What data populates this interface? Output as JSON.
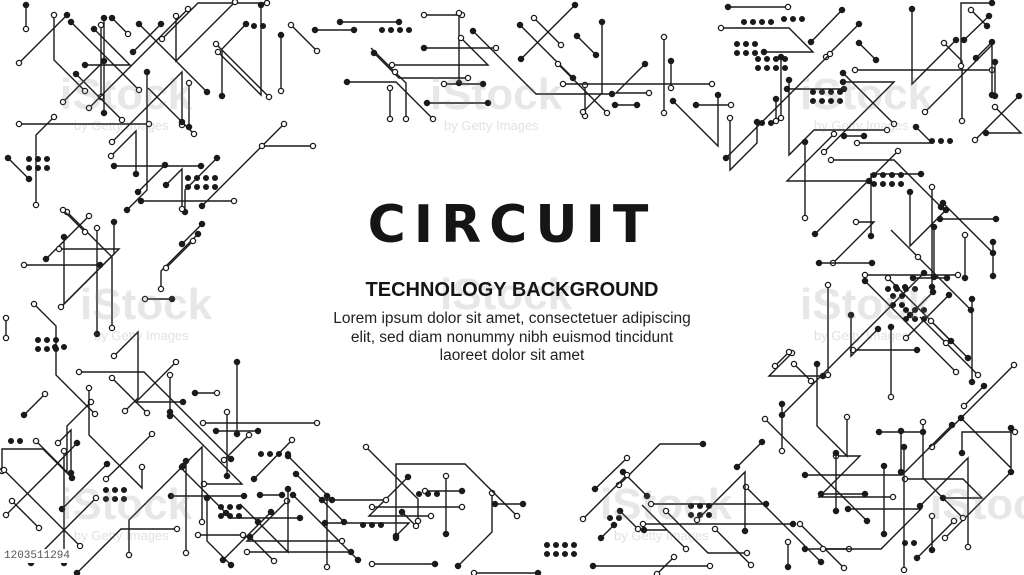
{
  "title": "CIRCUIT",
  "subtitle": "TECHNOLOGY BACKGROUND",
  "body_lines": [
    "Lorem ipsum dolor sit amet, consectetuer adipiscing",
    "elit, sed diam nonummy nibh euismod tincidunt",
    "laoreet dolor sit amet"
  ],
  "watermark": {
    "brand": "iStock",
    "credit": "by Getty Images"
  },
  "stock_id": "1203511294",
  "colors": {
    "trace": "#1a1a1a",
    "background": "#ffffff",
    "text": "#151515"
  }
}
